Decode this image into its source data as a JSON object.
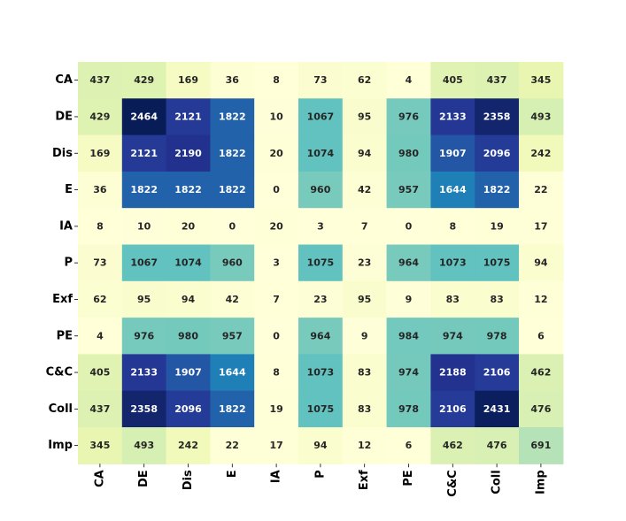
{
  "chart_data": {
    "type": "heatmap",
    "title": "",
    "xlabel": "",
    "ylabel": "",
    "rows": [
      "CA",
      "DE",
      "Dis",
      "E",
      "IA",
      "P",
      "Exf",
      "PE",
      "C&C",
      "Coll",
      "Imp"
    ],
    "cols": [
      "CA",
      "DE",
      "Dis",
      "E",
      "IA",
      "P",
      "Exf",
      "PE",
      "C&C",
      "Coll",
      "Imp"
    ],
    "values": [
      [
        437,
        429,
        169,
        36,
        8,
        73,
        62,
        4,
        405,
        437,
        345
      ],
      [
        429,
        2464,
        2121,
        1822,
        10,
        1067,
        95,
        976,
        2133,
        2358,
        493
      ],
      [
        169,
        2121,
        2190,
        1822,
        20,
        1074,
        94,
        980,
        1907,
        2096,
        242
      ],
      [
        36,
        1822,
        1822,
        1822,
        0,
        960,
        42,
        957,
        1644,
        1822,
        22
      ],
      [
        8,
        10,
        20,
        0,
        20,
        3,
        7,
        0,
        8,
        19,
        17
      ],
      [
        73,
        1067,
        1074,
        960,
        3,
        1075,
        23,
        964,
        1073,
        1075,
        94
      ],
      [
        62,
        95,
        94,
        42,
        7,
        23,
        95,
        9,
        83,
        83,
        12
      ],
      [
        4,
        976,
        980,
        957,
        0,
        964,
        9,
        984,
        974,
        978,
        6
      ],
      [
        405,
        2133,
        1907,
        1644,
        8,
        1073,
        83,
        974,
        2188,
        2106,
        462
      ],
      [
        437,
        2358,
        2096,
        1822,
        19,
        1075,
        83,
        978,
        2106,
        2431,
        476
      ],
      [
        345,
        493,
        242,
        22,
        17,
        94,
        12,
        6,
        462,
        476,
        691
      ]
    ],
    "colormap": "YlGnBu",
    "vmin": 0,
    "vmax": 2464,
    "colorbar": false,
    "grid": false
  }
}
